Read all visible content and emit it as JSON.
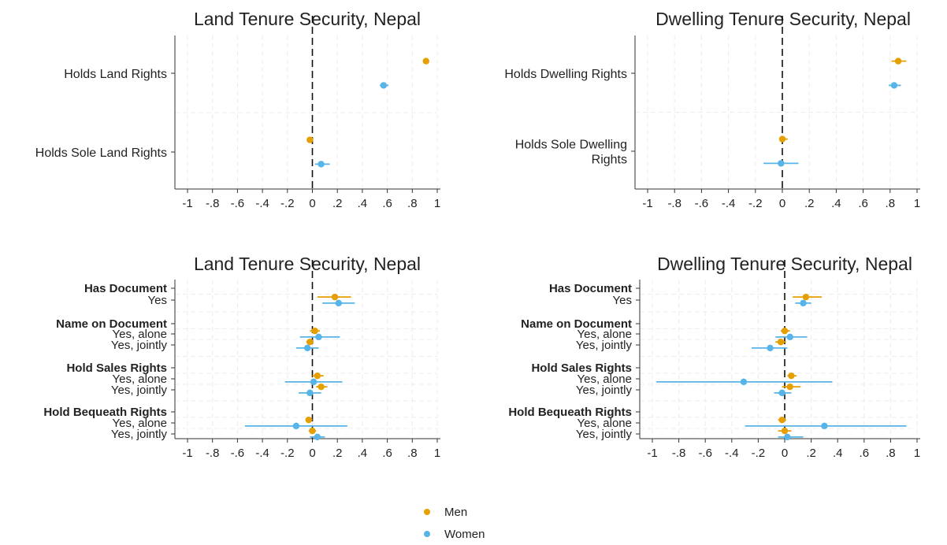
{
  "chart_data": [
    {
      "type": "scatter",
      "title": "Land Tenure Security, Nepal",
      "xlim": [
        -1,
        1
      ],
      "xticks": [
        "-1",
        "-.8",
        "-.6",
        "-.4",
        "-.2",
        "0",
        ".2",
        ".4",
        ".6",
        ".8",
        "1"
      ],
      "reference_line": 0,
      "grid": true,
      "rows": [
        {
          "label": "Holds Land Rights",
          "bold": false
        },
        {
          "label": "Holds Sole Land Rights",
          "bold": false
        }
      ],
      "series": [
        {
          "name": "Men",
          "color": "#E69F00",
          "points": [
            {
              "row": 0,
              "value": 0.91,
              "ci": [
                0.89,
                0.93
              ]
            },
            {
              "row": 1,
              "value": -0.02,
              "ci": [
                -0.04,
                0.0
              ]
            }
          ]
        },
        {
          "name": "Women",
          "color": "#56B4E9",
          "points": [
            {
              "row": 0,
              "value": 0.57,
              "ci": [
                0.54,
                0.61
              ]
            },
            {
              "row": 1,
              "value": 0.07,
              "ci": [
                0.02,
                0.14
              ]
            }
          ]
        }
      ]
    },
    {
      "type": "scatter",
      "title": "Dwelling Tenure Security, Nepal",
      "xlim": [
        -1,
        1
      ],
      "xticks": [
        "-1",
        "-.8",
        "-.6",
        "-.4",
        "-.2",
        "0",
        ".2",
        ".4",
        ".6",
        ".8",
        "1"
      ],
      "reference_line": 0,
      "grid": true,
      "rows": [
        {
          "label": "Holds Dwelling Rights",
          "bold": false
        },
        {
          "label": "Holds Sole Dwelling Rights",
          "bold": false
        }
      ],
      "series": [
        {
          "name": "Men",
          "color": "#E69F00",
          "points": [
            {
              "row": 0,
              "value": 0.86,
              "ci": [
                0.81,
                0.92
              ]
            },
            {
              "row": 1,
              "value": 0.0,
              "ci": [
                -0.02,
                0.04
              ]
            }
          ]
        },
        {
          "name": "Women",
          "color": "#56B4E9",
          "points": [
            {
              "row": 0,
              "value": 0.83,
              "ci": [
                0.79,
                0.88
              ]
            },
            {
              "row": 1,
              "value": -0.01,
              "ci": [
                -0.14,
                0.12
              ]
            }
          ]
        }
      ]
    },
    {
      "type": "scatter",
      "title": "Land Tenure Security, Nepal",
      "xlim": [
        -1,
        1
      ],
      "xticks": [
        "-1",
        "-.8",
        "-.6",
        "-.4",
        "-.2",
        "0",
        ".2",
        ".4",
        ".6",
        ".8",
        "1"
      ],
      "reference_line": 0,
      "grid": true,
      "rows": [
        {
          "label": "Has Document",
          "bold": true
        },
        {
          "label": "Yes",
          "bold": false
        },
        {
          "label": "Name on Document",
          "bold": true
        },
        {
          "label": "Yes, alone",
          "bold": false
        },
        {
          "label": "Yes, jointly",
          "bold": false
        },
        {
          "label": "Hold Sales Rights",
          "bold": true
        },
        {
          "label": "Yes, alone",
          "bold": false
        },
        {
          "label": "Yes, jointly",
          "bold": false
        },
        {
          "label": "Hold Bequeath Rights",
          "bold": true
        },
        {
          "label": "Yes, alone",
          "bold": false
        },
        {
          "label": "Yes, jointly",
          "bold": false
        }
      ],
      "series": [
        {
          "name": "Men",
          "color": "#E69F00",
          "points": [
            {
              "row": 1,
              "value": 0.18,
              "ci": [
                0.04,
                0.31
              ]
            },
            {
              "row": 3,
              "value": 0.02,
              "ci": [
                -0.02,
                0.06
              ]
            },
            {
              "row": 4,
              "value": -0.02,
              "ci": [
                -0.05,
                0.01
              ]
            },
            {
              "row": 6,
              "value": 0.04,
              "ci": [
                0.0,
                0.09
              ]
            },
            {
              "row": 7,
              "value": 0.07,
              "ci": [
                0.03,
                0.12
              ]
            },
            {
              "row": 9,
              "value": -0.03,
              "ci": [
                -0.05,
                0.0
              ]
            },
            {
              "row": 10,
              "value": 0.0,
              "ci": [
                -0.03,
                0.03
              ]
            }
          ]
        },
        {
          "name": "Women",
          "color": "#56B4E9",
          "points": [
            {
              "row": 1,
              "value": 0.21,
              "ci": [
                0.08,
                0.34
              ]
            },
            {
              "row": 3,
              "value": 0.05,
              "ci": [
                -0.1,
                0.22
              ]
            },
            {
              "row": 4,
              "value": -0.04,
              "ci": [
                -0.13,
                0.05
              ]
            },
            {
              "row": 6,
              "value": 0.01,
              "ci": [
                -0.22,
                0.24
              ]
            },
            {
              "row": 7,
              "value": -0.02,
              "ci": [
                -0.11,
                0.07
              ]
            },
            {
              "row": 9,
              "value": -0.13,
              "ci": [
                -0.54,
                0.28
              ]
            },
            {
              "row": 10,
              "value": 0.04,
              "ci": [
                -0.02,
                0.1
              ]
            }
          ]
        }
      ]
    },
    {
      "type": "scatter",
      "title": "Dwelling Tenure Security, Nepal",
      "xlim": [
        -1,
        1
      ],
      "xticks": [
        "-1",
        "-.8",
        "-.6",
        "-.4",
        "-.2",
        "0",
        ".2",
        ".4",
        ".6",
        ".8",
        "1"
      ],
      "reference_line": 0,
      "grid": true,
      "rows": [
        {
          "label": "Has Document",
          "bold": true
        },
        {
          "label": "Yes",
          "bold": false
        },
        {
          "label": "Name on Document",
          "bold": true
        },
        {
          "label": "Yes, alone",
          "bold": false
        },
        {
          "label": "Yes, jointly",
          "bold": false
        },
        {
          "label": "Hold Sales Rights",
          "bold": true
        },
        {
          "label": "Yes, alone",
          "bold": false
        },
        {
          "label": "Yes, jointly",
          "bold": false
        },
        {
          "label": "Hold Bequeath Rights",
          "bold": true
        },
        {
          "label": "Yes, alone",
          "bold": false
        },
        {
          "label": "Yes, jointly",
          "bold": false
        }
      ],
      "series": [
        {
          "name": "Men",
          "color": "#E69F00",
          "points": [
            {
              "row": 1,
              "value": 0.16,
              "ci": [
                0.06,
                0.28
              ]
            },
            {
              "row": 3,
              "value": 0.0,
              "ci": [
                -0.03,
                0.04
              ]
            },
            {
              "row": 4,
              "value": -0.03,
              "ci": [
                -0.07,
                0.01
              ]
            },
            {
              "row": 6,
              "value": 0.05,
              "ci": [
                0.02,
                0.09
              ]
            },
            {
              "row": 7,
              "value": 0.04,
              "ci": [
                -0.02,
                0.12
              ]
            },
            {
              "row": 9,
              "value": -0.02,
              "ci": [
                -0.05,
                0.01
              ]
            },
            {
              "row": 10,
              "value": 0.0,
              "ci": [
                -0.05,
                0.05
              ]
            }
          ]
        },
        {
          "name": "Women",
          "color": "#56B4E9",
          "points": [
            {
              "row": 1,
              "value": 0.14,
              "ci": [
                0.08,
                0.2
              ]
            },
            {
              "row": 3,
              "value": 0.04,
              "ci": [
                -0.07,
                0.17
              ]
            },
            {
              "row": 4,
              "value": -0.11,
              "ci": [
                -0.25,
                0.02
              ]
            },
            {
              "row": 6,
              "value": -0.31,
              "ci": [
                -0.97,
                0.36
              ]
            },
            {
              "row": 7,
              "value": -0.02,
              "ci": [
                -0.08,
                0.05
              ]
            },
            {
              "row": 9,
              "value": 0.3,
              "ci": [
                -0.3,
                0.92
              ]
            },
            {
              "row": 10,
              "value": 0.02,
              "ci": [
                -0.05,
                0.14
              ]
            }
          ]
        }
      ]
    }
  ],
  "legend": [
    {
      "label": "Men",
      "color": "#E69F00"
    },
    {
      "label": "Women",
      "color": "#56B4E9"
    }
  ]
}
